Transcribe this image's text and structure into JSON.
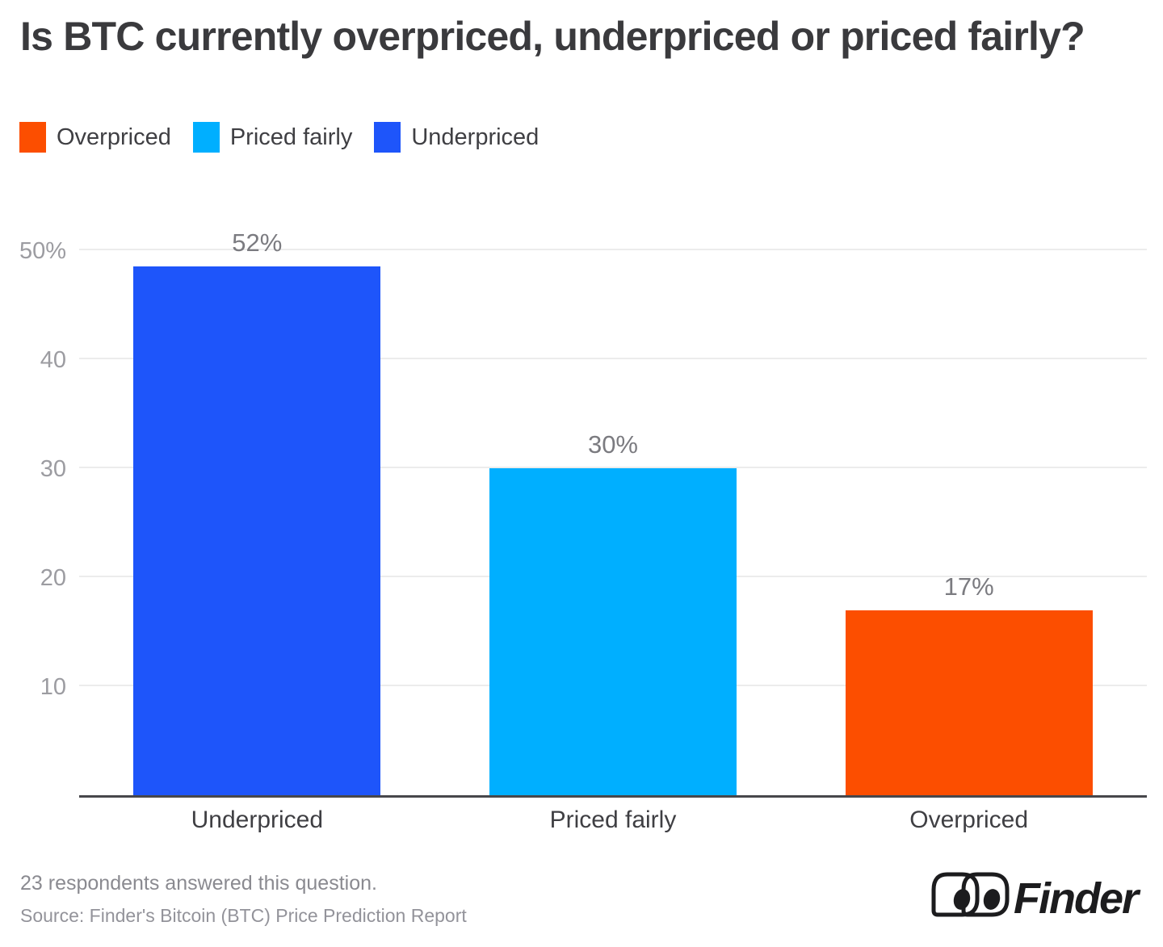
{
  "title": "Is BTC currently overpriced, underpriced or priced fairly?",
  "legend": {
    "items": [
      {
        "label": "Overpriced",
        "color": "#FC4E00"
      },
      {
        "label": "Priced fairly",
        "color": "#00AFFF"
      },
      {
        "label": "Underpriced",
        "color": "#1E55FA"
      }
    ]
  },
  "chart_data": {
    "type": "bar",
    "title": "Is BTC currently overpriced, underpriced or priced fairly?",
    "categories": [
      "Underpriced",
      "Priced fairly",
      "Overpriced"
    ],
    "values": [
      52,
      30,
      17
    ],
    "value_labels": [
      "52%",
      "30%",
      "17%"
    ],
    "colors": [
      "#1E55FA",
      "#00AFFF",
      "#FC4E00"
    ],
    "xlabel": "",
    "ylabel": "",
    "ylim": [
      0,
      52
    ],
    "y_ticks": [
      {
        "label": "10",
        "value": 10
      },
      {
        "label": "20",
        "value": 20
      },
      {
        "label": "30",
        "value": 30
      },
      {
        "label": "40",
        "value": 40
      },
      {
        "label": "50%",
        "value": 50
      }
    ],
    "grid": true,
    "legend_position": "top-left"
  },
  "footer": {
    "respondents": "23 respondents answered this question.",
    "source": "Source: Finder's Bitcoin (BTC) Price Prediction Report"
  },
  "logo": {
    "text": "Finder"
  }
}
